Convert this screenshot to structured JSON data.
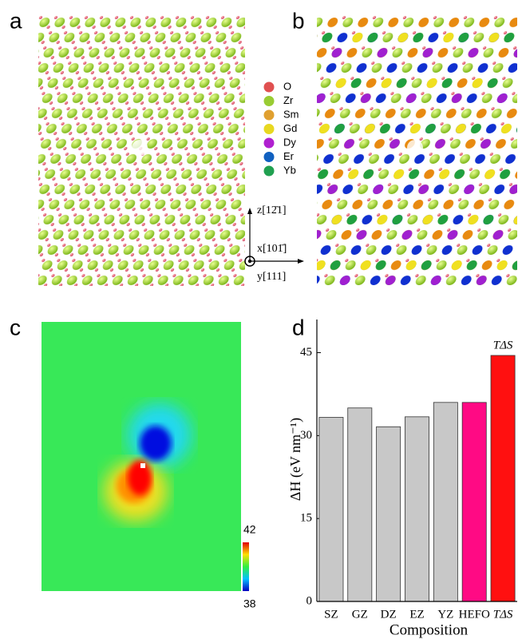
{
  "panels": {
    "a": "a",
    "b": "b",
    "c": "c",
    "d": "d"
  },
  "legend": [
    {
      "label": "O",
      "color": "#e05050"
    },
    {
      "label": "Zr",
      "color": "#99cc33"
    },
    {
      "label": "Sm",
      "color": "#e0a030"
    },
    {
      "label": "Gd",
      "color": "#e8d820"
    },
    {
      "label": "Dy",
      "color": "#b020d0"
    },
    {
      "label": "Er",
      "color": "#1060c0"
    },
    {
      "label": "Yb",
      "color": "#20a050"
    }
  ],
  "axes": {
    "z": "z[12̄1]",
    "x": "x[101̄]",
    "y": "y[111]"
  },
  "colorbar": {
    "max": 42,
    "min": 38
  },
  "chart_data": {
    "type": "bar",
    "categories": [
      "SZ",
      "GZ",
      "DZ",
      "EZ",
      "YZ",
      "HEFO",
      "TΔS"
    ],
    "values": [
      33.3,
      35.0,
      31.6,
      33.4,
      36.0,
      36.0,
      44.5
    ],
    "colors": [
      "#c8c8c8",
      "#c8c8c8",
      "#c8c8c8",
      "#c8c8c8",
      "#c8c8c8",
      "#ff0a84",
      "#ff1010"
    ],
    "ylim": [
      0,
      51
    ],
    "yticks": [
      0,
      15,
      30,
      45
    ],
    "x_label": "Composition",
    "y_label": "ΔH (eV nm⁻¹)",
    "annotation": "TΔS"
  }
}
